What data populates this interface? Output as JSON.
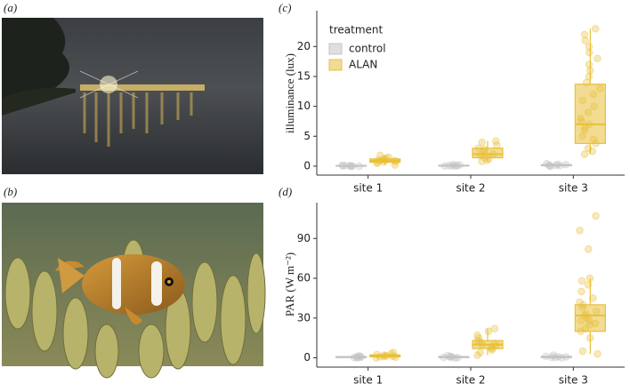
{
  "photos": [
    {
      "label": "(a)"
    },
    {
      "label": "(b)"
    }
  ],
  "chart_data": [
    {
      "type": "boxplot",
      "panel_label": "(c)",
      "ylabel": "illuminance (lux)",
      "categories": [
        "site 1",
        "site 2",
        "site 3"
      ],
      "ylim": [
        -1.5,
        26
      ],
      "yticks": [
        0,
        5,
        10,
        15,
        20
      ],
      "legend": {
        "title": "treatment",
        "position": "top-left"
      },
      "series": [
        {
          "name": "control",
          "color": "#c4c4c4",
          "boxes": [
            {
              "whisker_low": 0,
              "q1": 0.02,
              "median": 0.05,
              "q3": 0.1,
              "whisker_high": 0.15,
              "points": [
                0,
                0.02,
                0.05,
                0.1,
                0.08,
                0.03,
                0.15,
                0
              ]
            },
            {
              "whisker_low": 0,
              "q1": 0.03,
              "median": 0.08,
              "q3": 0.15,
              "whisker_high": 0.25,
              "points": [
                0,
                0.05,
                0.1,
                0.2,
                0.12,
                0.03,
                0.25
              ]
            },
            {
              "whisker_low": 0,
              "q1": 0.08,
              "median": 0.15,
              "q3": 0.25,
              "whisker_high": 0.4,
              "points": [
                0,
                0.1,
                0.2,
                0.3,
                0.15,
                0.05,
                0.4,
                0.25
              ]
            }
          ]
        },
        {
          "name": "ALAN",
          "color": "#e8c03a",
          "boxes": [
            {
              "whisker_low": 0.2,
              "q1": 0.65,
              "median": 0.9,
              "q3": 1.2,
              "whisker_high": 1.8,
              "points": [
                0.2,
                0.5,
                0.7,
                0.9,
                1.0,
                1.1,
                1.3,
                1.5,
                1.8,
                0.6,
                0.8,
                1.2
              ]
            },
            {
              "whisker_low": 0.8,
              "q1": 1.4,
              "median": 2.0,
              "q3": 3.0,
              "whisker_high": 4.2,
              "points": [
                0.8,
                1.2,
                1.5,
                1.8,
                2.0,
                2.3,
                2.8,
                3.0,
                3.5,
                4.0,
                4.2,
                1.0
              ]
            },
            {
              "whisker_low": 2,
              "q1": 3.8,
              "median": 7,
              "q3": 13.7,
              "whisker_high": 23,
              "points": [
                2,
                2.5,
                3,
                3.8,
                4.5,
                5,
                6,
                7,
                7.5,
                8,
                9,
                10,
                12,
                13,
                14,
                15,
                16,
                17,
                18,
                19,
                20,
                21,
                22,
                23,
                11,
                6.5
              ]
            }
          ]
        }
      ]
    },
    {
      "type": "boxplot",
      "panel_label": "(d)",
      "ylabel": "PAR (W m⁻²)",
      "categories": [
        "site 1",
        "site 2",
        "site 3"
      ],
      "ylim": [
        -7,
        117
      ],
      "yticks": [
        0,
        30,
        60,
        90
      ],
      "series": [
        {
          "name": "control",
          "color": "#c4c4c4",
          "boxes": [
            {
              "whisker_low": 0,
              "q1": 0.2,
              "median": 0.5,
              "q3": 1,
              "whisker_high": 1.5,
              "points": [
                0,
                0.3,
                0.5,
                1,
                1.5,
                0.8,
                0.2
              ]
            },
            {
              "whisker_low": 0,
              "q1": 0.2,
              "median": 0.5,
              "q3": 1,
              "whisker_high": 1.8,
              "points": [
                0,
                0.4,
                0.6,
                1,
                1.8,
                0.7,
                0.1
              ]
            },
            {
              "whisker_low": 0,
              "q1": 0.2,
              "median": 0.6,
              "q3": 1.1,
              "whisker_high": 2,
              "points": [
                0,
                0.5,
                0.7,
                1.2,
                2,
                0.9,
                0.2
              ]
            }
          ]
        },
        {
          "name": "ALAN",
          "color": "#e8c03a",
          "boxes": [
            {
              "whisker_low": 0,
              "q1": 0.8,
              "median": 1.3,
              "q3": 2.2,
              "whisker_high": 4,
              "points": [
                0,
                0.5,
                1,
                1.2,
                1.5,
                2,
                2.5,
                3,
                4,
                0.8
              ]
            },
            {
              "whisker_low": 2,
              "q1": 7,
              "median": 10,
              "q3": 13,
              "whisker_high": 22,
              "points": [
                2,
                4,
                6,
                7,
                8,
                9,
                10,
                11,
                12,
                13,
                15,
                17,
                20,
                22
              ]
            },
            {
              "whisker_low": 3,
              "q1": 20,
              "median": 32,
              "q3": 40,
              "whisker_high": 60,
              "points": [
                3,
                5,
                15,
                20,
                22,
                25,
                28,
                30,
                32,
                33,
                35,
                38,
                40,
                42,
                45,
                50,
                55,
                58,
                60,
                82,
                96,
                107,
                28,
                26
              ]
            }
          ]
        }
      ]
    }
  ]
}
